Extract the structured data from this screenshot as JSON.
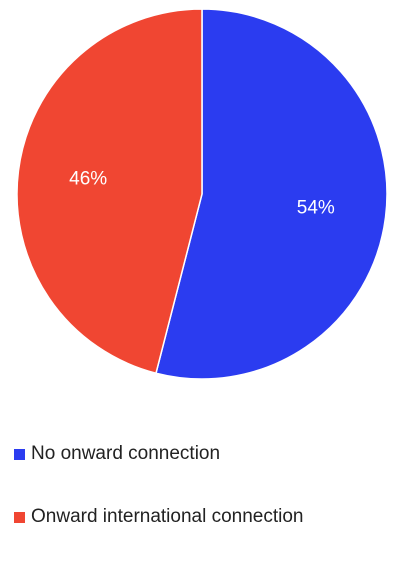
{
  "chart_data": {
    "type": "pie",
    "slices": [
      {
        "label": "No onward connection",
        "value": 54,
        "display": "54%",
        "color": "#2b3cf0"
      },
      {
        "label": "Onward international connection",
        "value": 46,
        "display": "46%",
        "color": "#f04632"
      }
    ],
    "legend": "bottom"
  }
}
